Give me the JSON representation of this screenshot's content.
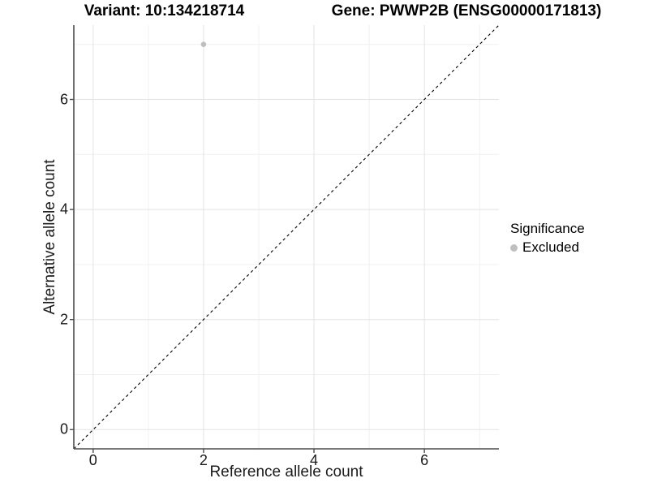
{
  "header": {
    "variant_title": "Variant: 10:134218714",
    "gene_title": "Gene: PWWP2B (ENSG00000171813)"
  },
  "legend": {
    "title": "Significance",
    "items": [
      {
        "label": "Excluded",
        "color": "#bfbfbf"
      }
    ]
  },
  "chart_data": {
    "type": "scatter",
    "title": "Variant: 10:134218714 | Gene: PWWP2B (ENSG00000171813)",
    "xlabel": "Reference allele count",
    "ylabel": "Alternative allele count",
    "xlim": [
      -0.35,
      7.35
    ],
    "ylim": [
      -0.35,
      7.35
    ],
    "x_ticks": [
      0,
      2,
      4,
      6
    ],
    "y_ticks": [
      0,
      2,
      4,
      6
    ],
    "grid": {
      "major": [
        0,
        2,
        4,
        6
      ],
      "minor": [
        1,
        3,
        5,
        7
      ],
      "on": true
    },
    "series": [
      {
        "name": "Excluded",
        "color": "#bfbfbf",
        "points": [
          {
            "x": 2,
            "y": 7
          }
        ]
      }
    ],
    "reference_line": {
      "type": "identity",
      "style": "dashed",
      "color": "#000000"
    },
    "legend_position": "right",
    "colors": {
      "grid_major": "#e3e3e3",
      "grid_minor": "#f0f0f0",
      "axis_line": "#4d4d4d",
      "point": "#bfbfbf",
      "background": "#ffffff"
    }
  }
}
